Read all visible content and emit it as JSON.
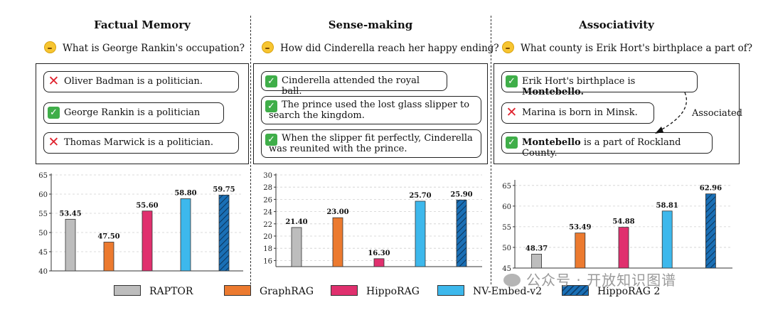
{
  "panels": [
    {
      "title": "Factual Memory",
      "question": "What is George Rankin's occupation?",
      "statements": [
        {
          "mark": "cross",
          "text": "Oliver Badman is a politician."
        },
        {
          "mark": "check",
          "text": "George Rankin is a politician"
        },
        {
          "mark": "cross",
          "text": "Thomas Marwick is a politician."
        }
      ]
    },
    {
      "title": "Sense-making",
      "question": "How did Cinderella reach her happy ending?",
      "statements": [
        {
          "mark": "check",
          "text": "Cinderella attended the royal ball."
        },
        {
          "mark": "check",
          "text": "The prince used the lost glass slipper to search the kingdom."
        },
        {
          "mark": "check",
          "text": "When the slipper fit perfectly, Cinderella was reunited with the prince."
        }
      ]
    },
    {
      "title": "Associativity",
      "question": "What county is Erik Hort's birthplace a part of?",
      "statements": [
        {
          "mark": "check",
          "text_before": "Erik Hort's birthplace is ",
          "bold": "Montebello.",
          "text_after": ""
        },
        {
          "mark": "cross",
          "text": "Marina is born in Minsk."
        },
        {
          "mark": "check",
          "text_before": "",
          "bold": "Montebello",
          "text_after": " is a part of Rockland County."
        }
      ],
      "link_label": "Associated"
    }
  ],
  "chart_data": [
    {
      "type": "bar",
      "categories": [
        "RAPTOR",
        "GraphRAG",
        "HippoRAG",
        "NV-Embed-v2",
        "HippoRAG 2"
      ],
      "values": [
        53.45,
        47.5,
        55.6,
        58.8,
        59.75
      ],
      "value_labels": [
        "53.45",
        "47.50",
        "55.60",
        "58.80",
        "59.75"
      ],
      "ylim": [
        40,
        65
      ],
      "yticks": [
        40,
        45,
        50,
        55,
        60,
        65
      ],
      "grid": true
    },
    {
      "type": "bar",
      "categories": [
        "RAPTOR",
        "GraphRAG",
        "HippoRAG",
        "NV-Embed-v2",
        "HippoRAG 2"
      ],
      "values": [
        21.4,
        23.0,
        16.3,
        25.7,
        25.9
      ],
      "value_labels": [
        "21.40",
        "23.00",
        "16.30",
        "25.70",
        "25.90"
      ],
      "ylim": [
        15,
        30
      ],
      "yticks": [
        16,
        18,
        20,
        22,
        24,
        26,
        28,
        30
      ],
      "grid": true
    },
    {
      "type": "bar",
      "categories": [
        "RAPTOR",
        "GraphRAG",
        "HippoRAG",
        "NV-Embed-v2",
        "HippoRAG 2"
      ],
      "values": [
        48.37,
        53.49,
        54.88,
        58.81,
        62.96
      ],
      "value_labels": [
        "48.37",
        "53.49",
        "54.88",
        "58.81",
        "62.96"
      ],
      "ylim": [
        45,
        66
      ],
      "yticks": [
        45,
        50,
        55,
        60,
        65
      ],
      "grid": true
    }
  ],
  "legend": [
    {
      "name": "RAPTOR",
      "color": "#bdbdbd"
    },
    {
      "name": "GraphRAG",
      "color": "#ec7a2f"
    },
    {
      "name": "HippoRAG",
      "color": "#e0306e"
    },
    {
      "name": "NV-Embed-v2",
      "color": "#3db8ec"
    },
    {
      "name": "HippoRAG 2",
      "color": "#1a6fb5",
      "hatched": true
    }
  ],
  "watermark": "公众号 · 开放知识图谱"
}
